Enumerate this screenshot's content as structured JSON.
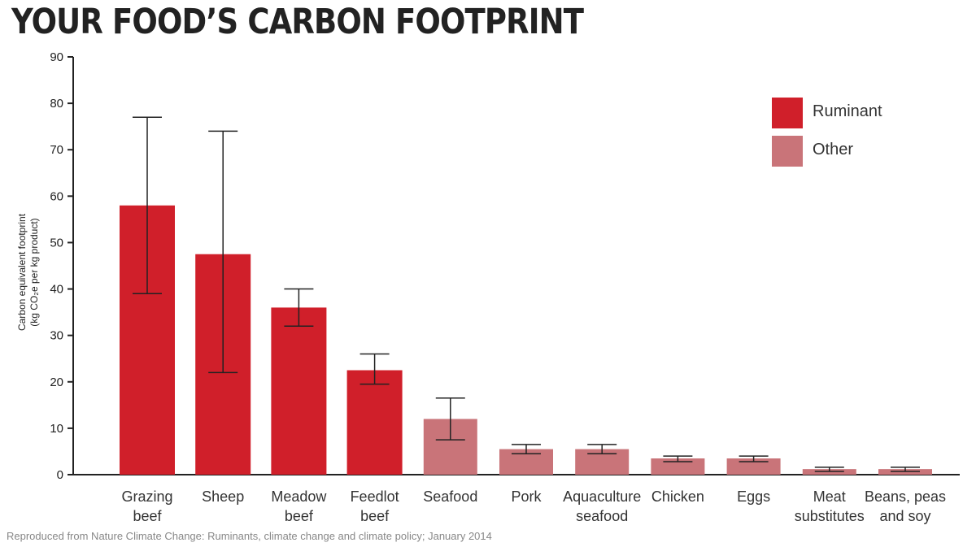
{
  "title": "YOUR FOOD’S CARBON FOOTPRINT",
  "source": "Reproduced from Nature Climate Change: Ruminants, climate change and climate policy; January 2014",
  "colors": {
    "Ruminant": "#d01f2a",
    "Other": "#c97479",
    "axis": "#222222"
  },
  "chart_data": {
    "type": "bar",
    "title": "YOUR FOOD’S CARBON FOOTPRINT",
    "ylabel_line1": "Carbon equivalent footprint",
    "ylabel_line2": "(kg CO₂e per kg product)",
    "ylim": [
      0,
      90
    ],
    "yticks": [
      0,
      10,
      20,
      30,
      40,
      50,
      60,
      70,
      80,
      90
    ],
    "grid": false,
    "legend_position": "top-right",
    "legend": [
      {
        "name": "Ruminant"
      },
      {
        "name": "Other"
      }
    ],
    "categories": [
      {
        "label": [
          "Grazing",
          "beef"
        ],
        "value": 58,
        "err_low": 39,
        "err_high": 77,
        "group": "Ruminant"
      },
      {
        "label": [
          "Sheep"
        ],
        "value": 47.5,
        "err_low": 22,
        "err_high": 74,
        "group": "Ruminant"
      },
      {
        "label": [
          "Meadow",
          "beef"
        ],
        "value": 36,
        "err_low": 32,
        "err_high": 40,
        "group": "Ruminant"
      },
      {
        "label": [
          "Feedlot",
          "beef"
        ],
        "value": 22.5,
        "err_low": 19.5,
        "err_high": 26,
        "group": "Ruminant"
      },
      {
        "label": [
          "Seafood"
        ],
        "value": 12,
        "err_low": 7.5,
        "err_high": 16.5,
        "group": "Other"
      },
      {
        "label": [
          "Pork"
        ],
        "value": 5.5,
        "err_low": 4.5,
        "err_high": 6.5,
        "group": "Other"
      },
      {
        "label": [
          "Aquaculture",
          "seafood"
        ],
        "value": 5.5,
        "err_low": 4.5,
        "err_high": 6.5,
        "group": "Other"
      },
      {
        "label": [
          "Chicken"
        ],
        "value": 3.5,
        "err_low": 2.8,
        "err_high": 4,
        "group": "Other"
      },
      {
        "label": [
          "Eggs"
        ],
        "value": 3.5,
        "err_low": 2.8,
        "err_high": 4,
        "group": "Other"
      },
      {
        "label": [
          "Meat",
          "substitutes"
        ],
        "value": 1.2,
        "err_low": 0.7,
        "err_high": 1.6,
        "group": "Other"
      },
      {
        "label": [
          "Beans, peas",
          "and soy"
        ],
        "value": 1.2,
        "err_low": 0.7,
        "err_high": 1.6,
        "group": "Other"
      }
    ]
  }
}
